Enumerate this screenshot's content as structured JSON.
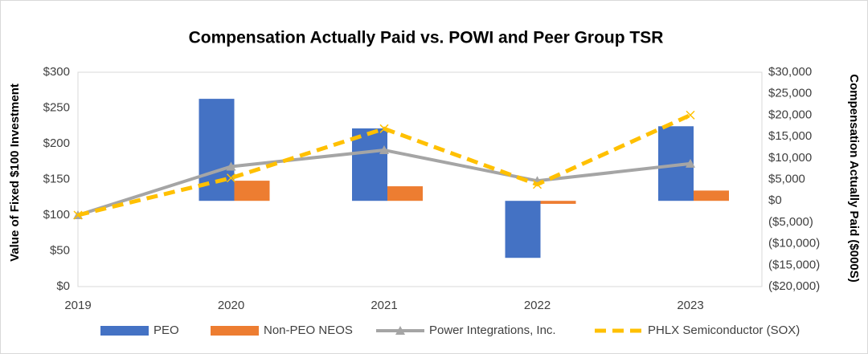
{
  "chart_data": {
    "type": "bar_line",
    "title": "Compensation Actually Paid vs. POWI and Peer Group TSR",
    "ylabel": "Value of  Fixed $100 Investment",
    "y2label": "Compensation Actually Paid ($000S)",
    "categories": [
      "2019",
      "2020",
      "2021",
      "2022",
      "2023"
    ],
    "series": [
      {
        "name": "PEO",
        "type": "bar",
        "axis": "y2",
        "color": "#4472c4",
        "values": [
          null,
          23800,
          16900,
          -13300,
          17400
        ]
      },
      {
        "name": "Non-PEO NEOS",
        "type": "bar",
        "axis": "y2",
        "color": "#ed7d31",
        "values": [
          null,
          4700,
          3400,
          -700,
          2400
        ]
      },
      {
        "name": "Power Integrations, Inc.",
        "type": "line",
        "color": "#a5a5a5",
        "values": [
          100,
          168,
          191,
          148,
          172
        ]
      },
      {
        "name": "PHLX Semiconductor (SOX)",
        "type": "line",
        "dashed": true,
        "color": "#ffc000",
        "values": [
          100,
          152,
          221,
          143,
          240
        ]
      }
    ],
    "ylim": [
      0,
      300
    ],
    "yticks": [
      {
        "value": 0,
        "label": "$0"
      },
      {
        "value": 50,
        "label": "$50"
      },
      {
        "value": 100,
        "label": "$100"
      },
      {
        "value": 150,
        "label": "$150"
      },
      {
        "value": 200,
        "label": "$200"
      },
      {
        "value": 250,
        "label": "$250"
      },
      {
        "value": 300,
        "label": "$300"
      }
    ],
    "y2lim": [
      -20000,
      30000
    ],
    "y2ticks": [
      {
        "value": -20000,
        "label": "($20,000)"
      },
      {
        "value": -15000,
        "label": "($15,000)"
      },
      {
        "value": -10000,
        "label": "($10,000)"
      },
      {
        "value": -5000,
        "label": "($5,000)"
      },
      {
        "value": 0,
        "label": "$0"
      },
      {
        "value": 5000,
        "label": "$5,000"
      },
      {
        "value": 10000,
        "label": "$10,000"
      },
      {
        "value": 15000,
        "label": "$15,000"
      },
      {
        "value": 20000,
        "label": "$20,000"
      },
      {
        "value": 25000,
        "label": "$25,000"
      },
      {
        "value": 30000,
        "label": "$30,000"
      }
    ],
    "grid": false,
    "legend": "bottom"
  }
}
